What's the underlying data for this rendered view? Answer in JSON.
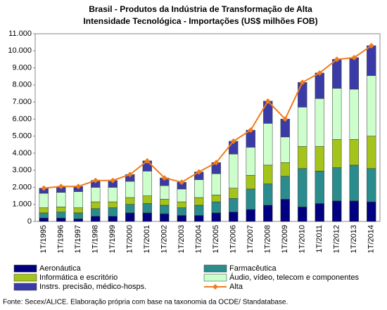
{
  "chart_data": {
    "type": "bar",
    "stacked": true,
    "title": [
      "Brasil - Produtos da Indústria de Transformação de Alta",
      "Intensidade Tecnológica - Importações (US$ milhões FOB)"
    ],
    "source": "Fonte: Secex/ALICE. Elaboração própria com base na taxonomia da OCDE/ Standatabase.",
    "categories": [
      "1T/1995",
      "1T/1996",
      "1T/1997",
      "1T/1998",
      "1T/1999",
      "1T/2000",
      "1T/2001",
      "1T/2002",
      "1T/2003",
      "1T/2004",
      "1T/2005",
      "1T/2006",
      "1T/2007",
      "1T/2008",
      "1T/2009",
      "1T/2010",
      "1T/2011",
      "1T/2012",
      "1T/2013",
      "1T/2014"
    ],
    "series": [
      {
        "name": "Aeronáutica",
        "color": "#000080",
        "type": "bar",
        "values": [
          200,
          200,
          150,
          300,
          300,
          500,
          500,
          450,
          350,
          350,
          500,
          550,
          700,
          950,
          1300,
          850,
          1050,
          1200,
          1200,
          1150
        ]
      },
      {
        "name": "Farmacêutica",
        "color": "#2a8c8c",
        "type": "bar",
        "values": [
          300,
          350,
          350,
          450,
          500,
          500,
          550,
          500,
          450,
          600,
          650,
          800,
          1200,
          1250,
          1350,
          2250,
          1900,
          1950,
          2100,
          1950
        ]
      },
      {
        "name": "Informática e escritório",
        "color": "#a4c41c",
        "type": "bar",
        "values": [
          300,
          300,
          300,
          400,
          350,
          400,
          450,
          350,
          350,
          450,
          400,
          600,
          800,
          1100,
          800,
          1300,
          1450,
          1650,
          1500,
          1900
        ]
      },
      {
        "name": "Áudio, vídeo, telecom e componentes",
        "color": "#ccffcc",
        "type": "bar",
        "values": [
          850,
          850,
          950,
          850,
          850,
          950,
          1450,
          800,
          750,
          1050,
          1250,
          2000,
          1650,
          2450,
          1500,
          2300,
          2800,
          3000,
          2950,
          3550
        ]
      },
      {
        "name": "Instrs. precisão, médico-hosps.",
        "color": "#3b3ba8",
        "type": "bar",
        "values": [
          300,
          350,
          300,
          400,
          400,
          400,
          600,
          450,
          400,
          450,
          650,
          750,
          1000,
          1300,
          1050,
          1450,
          1500,
          1700,
          1850,
          1750
        ]
      },
      {
        "name": "Alta",
        "color": "#f07c1c",
        "type": "line",
        "values": [
          1950,
          2050,
          2050,
          2400,
          2400,
          2750,
          3550,
          2550,
          2300,
          2900,
          3450,
          4700,
          5350,
          7050,
          6000,
          8150,
          8700,
          9500,
          9600,
          10300
        ]
      }
    ],
    "ylim": [
      0,
      11000
    ],
    "yticks": [
      0,
      {
        "value": 1000,
        "label": "1.000"
      },
      {
        "value": 2000,
        "label": "2.000"
      },
      {
        "value": 3000,
        "label": "3.000"
      },
      {
        "value": 4000,
        "label": "4.000"
      },
      {
        "value": 5000,
        "label": "5.000"
      },
      {
        "value": 6000,
        "label": "6.000"
      },
      {
        "value": 7000,
        "label": "7.000"
      },
      {
        "value": 8000,
        "label": "8.000"
      },
      {
        "value": 9000,
        "label": "9.000"
      },
      {
        "value": 10000,
        "label": "10.000"
      },
      {
        "value": 11000,
        "label": "11.000"
      }
    ],
    "grid": false,
    "legend": "bottom"
  }
}
